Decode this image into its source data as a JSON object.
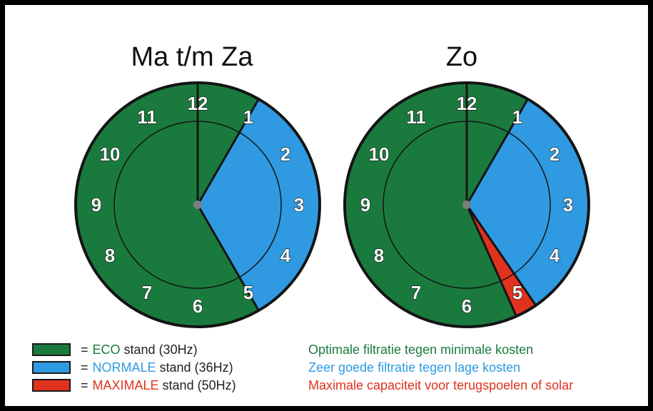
{
  "colors": {
    "eco": "#1a7a3e",
    "normale": "#2f9ae2",
    "maximale": "#e0321e",
    "outline": "#141414",
    "hub": "#7d7d7d"
  },
  "clocks": [
    {
      "title": "Ma t/m Za",
      "segments": [
        {
          "mode": "eco",
          "from": 0,
          "to": 1
        },
        {
          "mode": "normale",
          "from": 1,
          "to": 5
        },
        {
          "mode": "eco",
          "from": 5,
          "to": 12
        }
      ]
    },
    {
      "title": "Zo",
      "segments": [
        {
          "mode": "eco",
          "from": 0,
          "to": 1
        },
        {
          "mode": "normale",
          "from": 1,
          "to": 4.85
        },
        {
          "mode": "maximale",
          "from": 4.85,
          "to": 5.2
        },
        {
          "mode": "eco",
          "from": 5.2,
          "to": 12
        }
      ]
    }
  ],
  "hour_labels": [
    "1",
    "2",
    "3",
    "4",
    "5",
    "6",
    "7",
    "8",
    "9",
    "10",
    "11",
    "12"
  ],
  "legend": [
    {
      "key": "eco",
      "eq": "=",
      "mode": "ECO",
      "stand": "stand (30Hz)",
      "description": "Optimale filtratie tegen minimale kosten"
    },
    {
      "key": "normale",
      "eq": "=",
      "mode": "NORMALE",
      "stand": "stand (36Hz)",
      "description": "Zeer goede filtratie tegen lage kosten"
    },
    {
      "key": "maximale",
      "eq": "=",
      "mode": "MAXIMALE",
      "stand": "stand (50Hz)",
      "description": "Maximale capaciteit voor terugspoelen of solar"
    }
  ]
}
